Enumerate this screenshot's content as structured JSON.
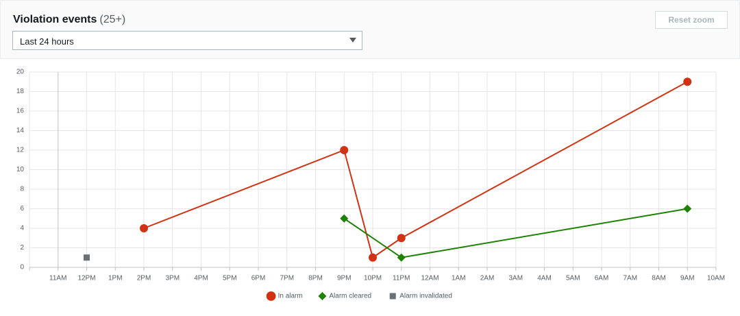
{
  "header": {
    "title": "Violation events",
    "count": "(25+)",
    "reset_button": "Reset zoom"
  },
  "filter": {
    "selected": "Last 24 hours"
  },
  "chart_data": {
    "type": "line",
    "categories": [
      null,
      "11AM",
      "12PM",
      "1PM",
      "2PM",
      "3PM",
      "4PM",
      "5PM",
      "6PM",
      "7PM",
      "8PM",
      "9PM",
      "10PM",
      "11PM",
      "12AM",
      "1AM",
      "2AM",
      "3AM",
      "4AM",
      "5AM",
      "6AM",
      "7AM",
      "8AM",
      "9AM",
      "10AM"
    ],
    "series": [
      {
        "name": "In alarm",
        "color": "#d13212",
        "marker": "circle",
        "x": [
          "2PM",
          "9PM",
          "10PM",
          "11PM",
          "9AM"
        ],
        "values": [
          4,
          12,
          1,
          3,
          19
        ]
      },
      {
        "name": "Alarm cleared",
        "color": "#1d8102",
        "marker": "diamond",
        "x": [
          "9PM",
          "11PM",
          "9AM"
        ],
        "values": [
          5,
          1,
          6
        ]
      },
      {
        "name": "Alarm invalidated",
        "color": "#687078",
        "marker": "square",
        "x": [
          "12PM"
        ],
        "values": [
          1
        ]
      }
    ],
    "ylim": [
      0,
      20
    ],
    "yticks": [
      0,
      2,
      4,
      6,
      8,
      10,
      12,
      14,
      16,
      18,
      20
    ],
    "grid": true,
    "legend": "bottom"
  }
}
